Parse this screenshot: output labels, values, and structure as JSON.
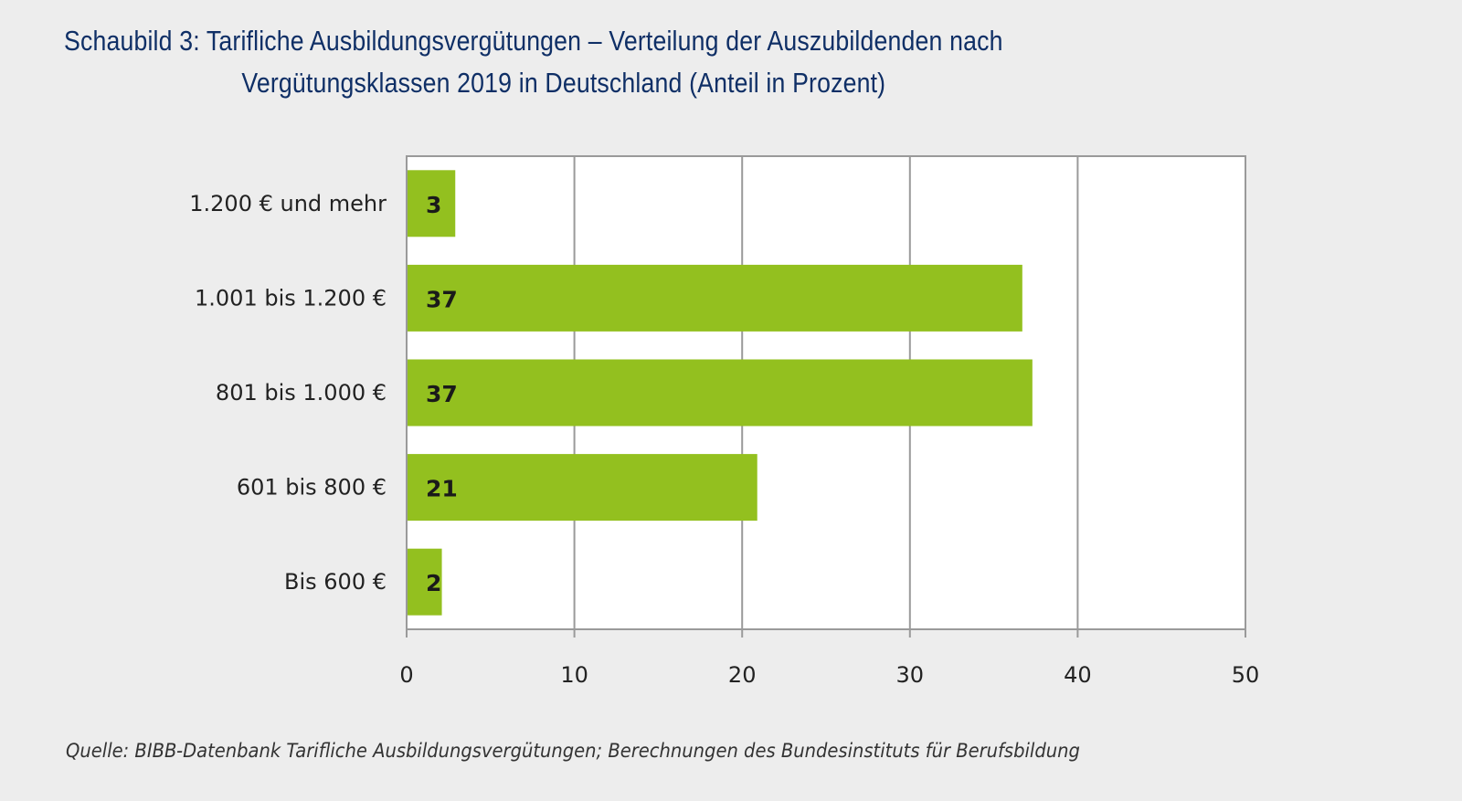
{
  "title": {
    "line1": "Schaubild 3: Tarifliche Ausbildungsvergütungen – Verteilung der Auszubildenden nach",
    "line2": "Vergütungsklassen 2019 in Deutschland (Anteil in Prozent)"
  },
  "source": "Quelle: BIBB-Datenbank Tarifliche Ausbildungsvergütungen; Berechnungen des Bundesinstituts für Berufsbildung",
  "colors": {
    "bar": "#93c01f",
    "title": "#0f2f66",
    "grid": "#9a9a9a",
    "background": "#ededed",
    "plot": "#ffffff"
  },
  "chart_data": {
    "type": "bar",
    "orientation": "horizontal",
    "title": "Schaubild 3: Tarifliche Ausbildungsvergütungen – Verteilung der Auszubildenden nach Vergütungsklassen 2019 in Deutschland (Anteil in Prozent)",
    "categories": [
      "1.200 € und mehr",
      "1.001 bis 1.200 €",
      "801 bis 1.000 €",
      "601 bis 800 €",
      "Bis 600 €"
    ],
    "values": [
      2.9,
      36.7,
      37.3,
      20.9,
      2.1
    ],
    "data_labels": [
      "3",
      "37",
      "37",
      "21",
      "2"
    ],
    "xlabel": "",
    "ylabel": "",
    "xlim": [
      0,
      50
    ],
    "xticks": [
      0,
      10,
      20,
      30,
      40,
      50
    ],
    "xtick_labels": [
      "0",
      "10",
      "20",
      "30",
      "40",
      "50"
    ],
    "grid": true,
    "legend": "none"
  }
}
